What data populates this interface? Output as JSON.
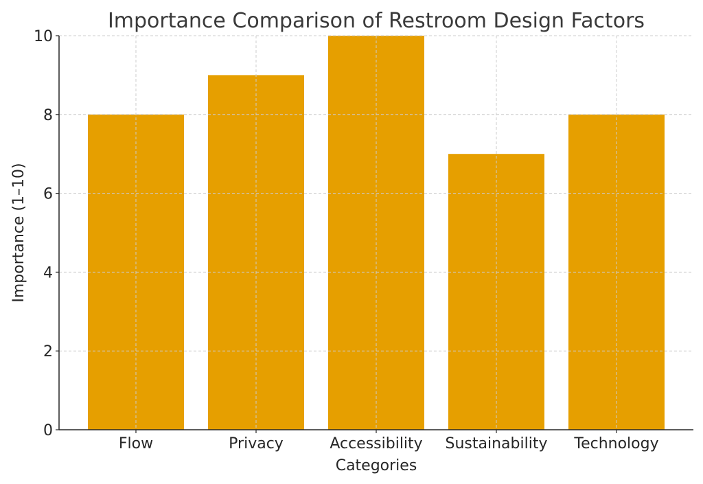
{
  "chart_data": {
    "type": "bar",
    "title": "Importance Comparison of Restroom Design Factors",
    "xlabel": "Categories",
    "ylabel": "Importance (1–10)",
    "categories": [
      "Flow",
      "Privacy",
      "Accessibility",
      "Sustainability",
      "Technology"
    ],
    "values": [
      8,
      9,
      10,
      7,
      8
    ],
    "ylim": [
      0,
      10
    ],
    "yticks": [
      "0",
      "2",
      "4",
      "6",
      "8",
      "10"
    ],
    "grid": true,
    "bar_color": "#E69F00"
  }
}
